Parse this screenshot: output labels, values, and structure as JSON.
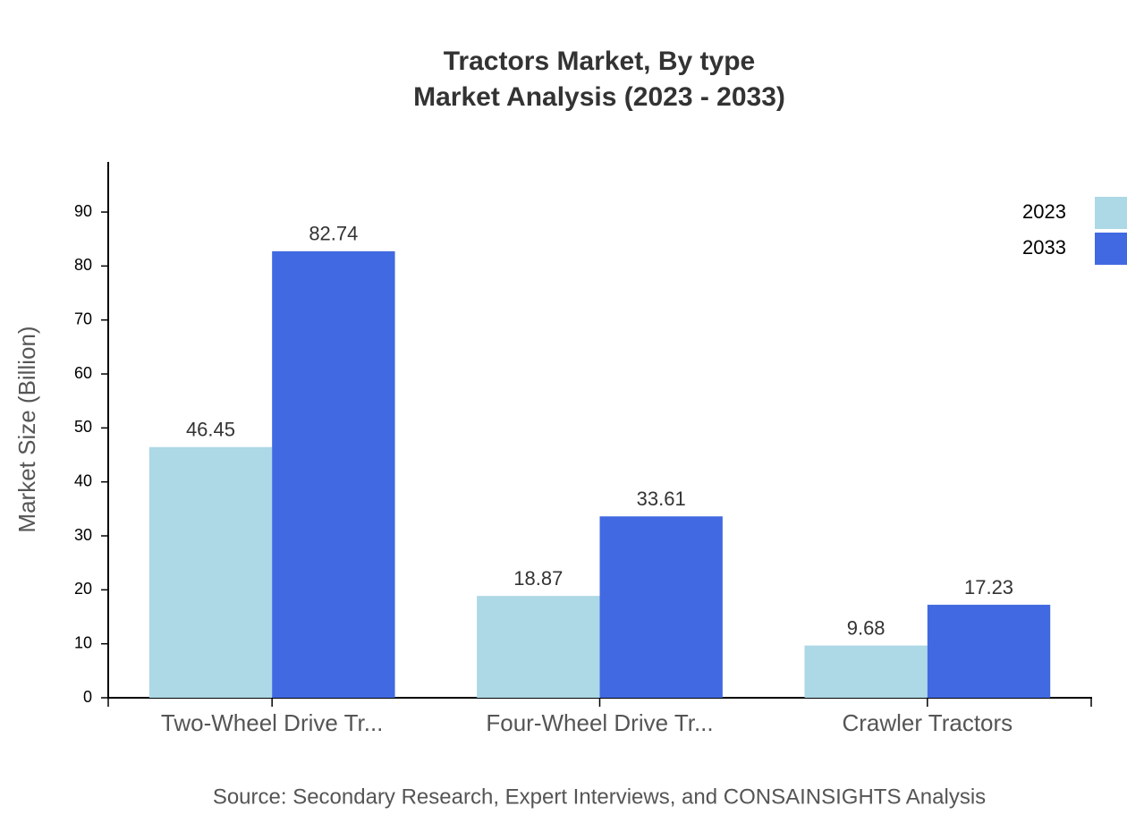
{
  "chart_data": {
    "type": "bar",
    "title": "Tractors Market, By type",
    "subtitle": "Market Analysis (2023 - 2033)",
    "y_label": "Market Size (Billion)",
    "source": "Source: Secondary Research, Expert Interviews, and CONSAINSIGHTS Analysis",
    "categories": [
      "Two-Wheel Drive Tr...",
      "Four-Wheel Drive Tr...",
      "Crawler Tractors"
    ],
    "series": [
      {
        "name": "2023",
        "color": "#add8e6",
        "values": [
          46.45,
          18.87,
          9.68
        ]
      },
      {
        "name": "2033",
        "color": "#4169e1",
        "values": [
          82.74,
          33.61,
          17.23
        ]
      }
    ],
    "ylim": [
      0,
      99.29
    ],
    "yticks": [
      0,
      10,
      20,
      30,
      40,
      50,
      60,
      70,
      80,
      90
    ],
    "legend": "top-right"
  }
}
